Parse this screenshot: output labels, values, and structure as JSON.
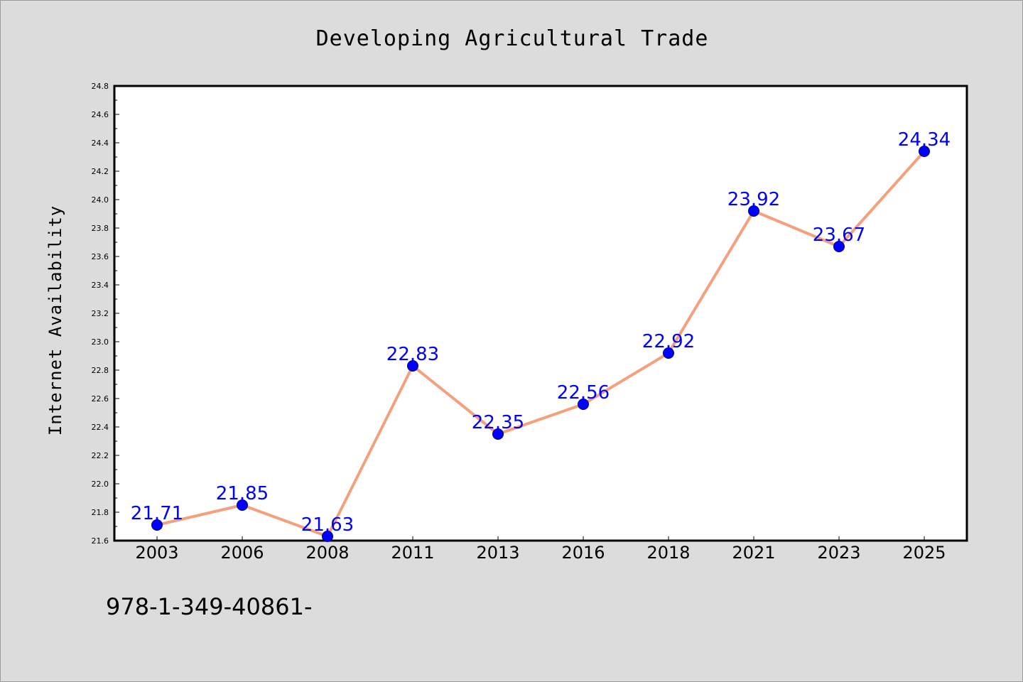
{
  "chart_data": {
    "type": "line",
    "title": "Developing Agricultural Trade",
    "xlabel": "",
    "ylabel": "Internet Availability",
    "categories": [
      "2003",
      "2006",
      "2008",
      "2011",
      "2013",
      "2016",
      "2018",
      "2021",
      "2023",
      "2025"
    ],
    "series": [
      {
        "values": [
          21.71,
          21.85,
          21.63,
          22.83,
          22.35,
          22.56,
          22.92,
          23.92,
          23.67,
          24.34
        ]
      }
    ],
    "data_labels": [
      "21.71",
      "21.85",
      "21.63",
      "22.83",
      "22.35",
      "22.56",
      "22.92",
      "23.92",
      "23.67",
      "24.34"
    ],
    "ylim": [
      21.6,
      24.8
    ],
    "y_ticks": [
      "21.6",
      "21.8",
      "22.0",
      "22.2",
      "22.4",
      "22.6",
      "22.8",
      "23.0",
      "23.2",
      "23.4",
      "23.6",
      "23.8",
      "24.0",
      "24.2",
      "24.4",
      "24.6",
      "24.8"
    ],
    "grid": false,
    "legend": "none",
    "colors": {
      "line": "#f4a07c",
      "marker": "#0000ff",
      "data_label": "#0000ff",
      "background": "#dcdcdc",
      "plot_background": "#ffffff"
    }
  },
  "footer": {
    "text": "978-1-349-40861-"
  }
}
